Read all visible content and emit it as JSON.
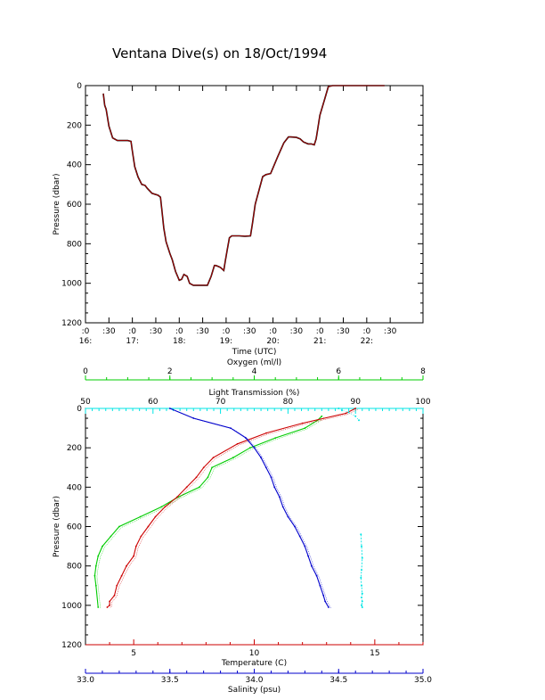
{
  "title": "Ventana Dive(s) on 18/Oct/1994",
  "chart_data": [
    {
      "type": "line",
      "title": "Ventana Dive(s) on 18/Oct/1994",
      "xlabel": "Time (UTC)",
      "ylabel": "Pressure (dbar)",
      "xlim": [
        15.5,
        22.7
      ],
      "ylim": [
        1200,
        0
      ],
      "yticks": [
        0,
        200,
        400,
        600,
        800,
        1000,
        1200
      ],
      "xticks": [
        {
          "v": 15.5,
          "top": ":0",
          "bottom": "16:"
        },
        {
          "v": 16.0,
          "top": ":30",
          "bottom": ""
        },
        {
          "v": 16.5,
          "top": ":0",
          "bottom": "17:"
        },
        {
          "v": 17.0,
          "top": ":30",
          "bottom": ""
        },
        {
          "v": 17.5,
          "top": ":0",
          "bottom": "18:"
        },
        {
          "v": 18.0,
          "top": ":30",
          "bottom": ""
        },
        {
          "v": 18.5,
          "top": ":0",
          "bottom": "19:"
        },
        {
          "v": 19.0,
          "top": ":30",
          "bottom": ""
        },
        {
          "v": 19.5,
          "top": ":0",
          "bottom": "20:"
        },
        {
          "v": 20.0,
          "top": ":30",
          "bottom": ""
        },
        {
          "v": 20.5,
          "top": ":0",
          "bottom": "21:"
        },
        {
          "v": 21.0,
          "top": ":30",
          "bottom": ""
        },
        {
          "v": 21.5,
          "top": ":0",
          "bottom": "22:"
        },
        {
          "v": 22.0,
          "top": ":30",
          "bottom": ""
        }
      ],
      "series": [
        {
          "color": "#c00000",
          "x": [
            15.88,
            15.91,
            15.94,
            16.0,
            16.08,
            16.18,
            16.3,
            16.4,
            16.47,
            16.5,
            16.55,
            16.62,
            16.7,
            16.77,
            16.82,
            16.92,
            17.05,
            17.1,
            17.13,
            17.17,
            17.22,
            17.3,
            17.35,
            17.42,
            17.5,
            17.55,
            17.6,
            17.67,
            17.72,
            17.8,
            17.9,
            18.0,
            18.1,
            18.18,
            18.25,
            18.28,
            18.33,
            18.38,
            18.45,
            18.48,
            18.52,
            18.57,
            18.62,
            18.7,
            18.78,
            18.9,
            19.02,
            19.06,
            19.12,
            19.2,
            19.28,
            19.35,
            19.45,
            19.6,
            19.73,
            19.83,
            19.88,
            20.0,
            20.08,
            20.15,
            20.25,
            20.32,
            20.38,
            20.42,
            20.45,
            20.5,
            20.6,
            20.68,
            20.77,
            20.85,
            20.95,
            21.03,
            21.07,
            21.12,
            21.2,
            21.3,
            21.4,
            21.47,
            21.52,
            21.55,
            21.58,
            21.65,
            21.72,
            21.82,
            21.88
          ],
          "y": [
            40,
            100,
            120,
            205,
            265,
            278,
            278,
            278,
            282,
            330,
            410,
            462,
            500,
            505,
            520,
            545,
            555,
            565,
            630,
            720,
            790,
            850,
            880,
            940,
            985,
            980,
            955,
            965,
            1000,
            1010,
            1010,
            1010,
            1010,
            965,
            910,
            910,
            915,
            920,
            935,
            890,
            835,
            770,
            760,
            760,
            760,
            762,
            760,
            700,
            600,
            530,
            460,
            450,
            445,
            360,
            290,
            260,
            260,
            262,
            270,
            285,
            295,
            295,
            300,
            270,
            225,
            150,
            70,
            5,
            0,
            0,
            0,
            0,
            0,
            0,
            0,
            0,
            0,
            0,
            0,
            0,
            0,
            0,
            0,
            0,
            0
          ]
        }
      ]
    },
    {
      "type": "scatter",
      "ylabel": "Pressure (dbar)",
      "ylim": [
        1200,
        0
      ],
      "yticks": [
        0,
        200,
        400,
        600,
        800,
        1000,
        1200
      ],
      "axes": [
        {
          "label": "Oxygen (ml/l)",
          "color": "#00cc00",
          "range": [
            0,
            8
          ],
          "ticks": [
            "0",
            "2",
            "4",
            "6",
            "8"
          ],
          "position": "top-outer"
        },
        {
          "label": "Light Transmission (%)",
          "color": "#00e5e5",
          "range": [
            50,
            100
          ],
          "ticks": [
            "50",
            "60",
            "70",
            "80",
            "90",
            "100"
          ],
          "position": "top-inner"
        },
        {
          "label": "Temperature (C)",
          "color": "#cc0000",
          "range": [
            3,
            17
          ],
          "ticks": [
            "5",
            "10",
            "15"
          ],
          "position": "bottom-inner"
        },
        {
          "label": "Salinity (psu)",
          "color": "#0000cc",
          "range": [
            33.0,
            35.0
          ],
          "ticks": [
            "33.0",
            "33.5",
            "34.0",
            "34.5",
            "35.0"
          ],
          "position": "bottom-outer"
        }
      ],
      "series": [
        {
          "name": "Oxygen",
          "color": "#00cc00",
          "x": [
            5.6,
            5.5,
            5.2,
            4.5,
            3.9,
            3.5,
            3.0,
            2.9,
            2.7,
            2.2,
            1.8,
            1.3,
            0.8,
            0.6,
            0.4,
            0.3,
            0.25,
            0.22,
            0.25,
            0.3
          ],
          "y": [
            40,
            60,
            100,
            150,
            200,
            250,
            300,
            350,
            400,
            450,
            500,
            550,
            600,
            650,
            700,
            750,
            800,
            850,
            900,
            1010
          ]
        },
        {
          "name": "Temperature",
          "color": "#cc0000",
          "x": [
            14.2,
            13.8,
            12.0,
            10.5,
            9.3,
            8.3,
            7.9,
            7.6,
            7.2,
            6.8,
            6.3,
            5.9,
            5.6,
            5.3,
            5.1,
            5.0,
            4.7,
            4.5,
            4.3,
            4.2,
            4.0,
            4.0,
            3.9
          ],
          "y": [
            0,
            25,
            75,
            125,
            180,
            250,
            300,
            350,
            400,
            450,
            500,
            550,
            600,
            650,
            700,
            750,
            800,
            850,
            900,
            950,
            980,
            1000,
            1010
          ]
        },
        {
          "name": "Salinity",
          "color": "#0000cc",
          "x": [
            33.5,
            33.64,
            33.86,
            33.95,
            34.0,
            34.04,
            34.07,
            34.1,
            34.12,
            34.15,
            34.17,
            34.2,
            34.24,
            34.27,
            34.3,
            34.32,
            34.34,
            34.37,
            34.39,
            34.41,
            34.42,
            34.44
          ],
          "y": [
            0,
            50,
            100,
            150,
            200,
            250,
            300,
            350,
            400,
            450,
            500,
            550,
            600,
            650,
            700,
            750,
            800,
            850,
            900,
            950,
            980,
            1010
          ]
        },
        {
          "name": "Light Transmission",
          "color": "#00e5e5",
          "x": [
            87.5,
            88,
            89,
            90,
            90.5,
            90.8,
            90.9,
            91.0,
            90.9,
            90.8,
            90.9,
            91.0,
            90.9,
            91.0,
            90.9,
            91.0
          ],
          "y": [
            0,
            10,
            20,
            40,
            60,
            640,
            700,
            760,
            820,
            860,
            900,
            940,
            960,
            980,
            1000,
            1010
          ]
        }
      ]
    }
  ]
}
